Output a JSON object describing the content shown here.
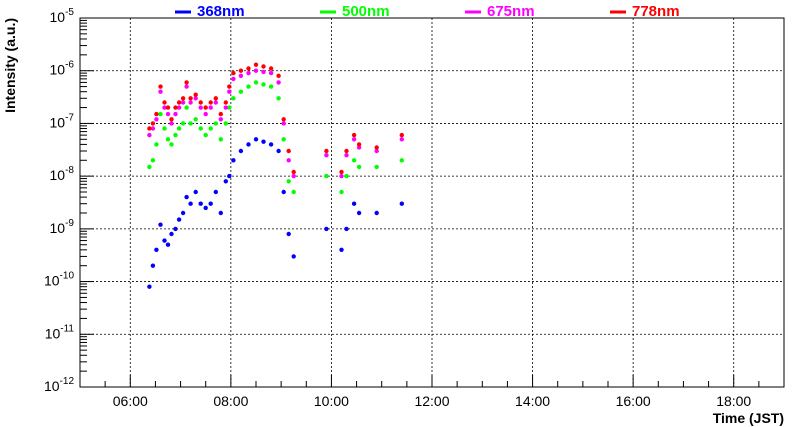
{
  "chart_data": {
    "type": "scatter",
    "title": "",
    "xlabel": "Time (JST)",
    "ylabel": "Intensity (a.u.)",
    "x_unit": "hours (JST)",
    "xlim": [
      5.0,
      19.0
    ],
    "x_ticks": [
      6,
      8,
      10,
      12,
      14,
      16,
      18
    ],
    "x_tick_labels": [
      "06:00",
      "08:00",
      "10:00",
      "12:00",
      "14:00",
      "16:00",
      "18:00"
    ],
    "y_scale": "log",
    "ylim": [
      1e-12,
      1e-05
    ],
    "y_ticks": [
      1e-12,
      1e-11,
      1e-10,
      1e-09,
      1e-08,
      1e-07,
      1e-06,
      1e-05
    ],
    "y_tick_labels": [
      {
        "base": "10",
        "exp": "-12"
      },
      {
        "base": "10",
        "exp": "-11"
      },
      {
        "base": "10",
        "exp": "-10"
      },
      {
        "base": "10",
        "exp": "-9"
      },
      {
        "base": "10",
        "exp": "-8"
      },
      {
        "base": "10",
        "exp": "-7"
      },
      {
        "base": "10",
        "exp": "-6"
      },
      {
        "base": "10",
        "exp": "-5"
      }
    ],
    "grid": true,
    "legend_position": "top",
    "series": [
      {
        "name": "368nm",
        "color": "#0000ff",
        "x": [
          6.38,
          6.45,
          6.52,
          6.6,
          6.68,
          6.75,
          6.82,
          6.9,
          6.97,
          7.05,
          7.12,
          7.2,
          7.3,
          7.4,
          7.5,
          7.6,
          7.7,
          7.8,
          7.9,
          7.97,
          8.05,
          8.2,
          8.35,
          8.5,
          8.65,
          8.8,
          8.95,
          9.05,
          9.15,
          9.25,
          9.9,
          10.2,
          10.3,
          10.45,
          10.55,
          10.9,
          11.4
        ],
        "y": [
          8e-11,
          2e-10,
          4e-10,
          1.2e-09,
          6e-10,
          5e-10,
          8e-10,
          1e-09,
          1.5e-09,
          2e-09,
          4e-09,
          3e-09,
          5e-09,
          3e-09,
          2.5e-09,
          3e-09,
          5e-09,
          2e-09,
          8e-09,
          1e-08,
          2e-08,
          3e-08,
          4e-08,
          5e-08,
          4.5e-08,
          4e-08,
          3e-08,
          5e-09,
          8e-10,
          3e-10,
          1e-09,
          4e-10,
          1e-09,
          3e-09,
          2e-09,
          2e-09,
          3e-09
        ]
      },
      {
        "name": "500nm",
        "color": "#00ff00",
        "x": [
          6.38,
          6.45,
          6.52,
          6.6,
          6.68,
          6.75,
          6.82,
          6.9,
          6.97,
          7.05,
          7.12,
          7.2,
          7.3,
          7.4,
          7.5,
          7.6,
          7.7,
          7.8,
          7.9,
          7.97,
          8.05,
          8.2,
          8.35,
          8.5,
          8.65,
          8.8,
          8.95,
          9.05,
          9.15,
          9.25,
          9.9,
          10.2,
          10.3,
          10.45,
          10.55,
          10.9,
          11.4
        ],
        "y": [
          1.5e-08,
          2e-08,
          4e-08,
          1.5e-07,
          8e-08,
          5e-08,
          4e-08,
          6e-08,
          8e-08,
          1e-07,
          2e-07,
          1e-07,
          1.2e-07,
          8e-08,
          6e-08,
          8e-08,
          1e-07,
          5e-08,
          1e-07,
          2e-07,
          3e-07,
          4e-07,
          5e-07,
          6e-07,
          5.5e-07,
          5e-07,
          3e-07,
          5e-08,
          8e-09,
          5e-09,
          1e-08,
          5e-09,
          1e-08,
          2e-08,
          1.5e-08,
          1.5e-08,
          2e-08
        ]
      },
      {
        "name": "675nm",
        "color": "#ff00ff",
        "x": [
          6.38,
          6.45,
          6.52,
          6.6,
          6.68,
          6.75,
          6.82,
          6.9,
          6.97,
          7.05,
          7.12,
          7.2,
          7.3,
          7.4,
          7.5,
          7.6,
          7.7,
          7.8,
          7.9,
          7.97,
          8.05,
          8.2,
          8.35,
          8.5,
          8.65,
          8.8,
          8.95,
          9.05,
          9.15,
          9.25,
          9.9,
          10.2,
          10.3,
          10.45,
          10.55,
          10.9,
          11.4
        ],
        "y": [
          6e-08,
          8e-08,
          1.2e-07,
          4e-07,
          2e-07,
          1.5e-07,
          1e-07,
          1.5e-07,
          2e-07,
          2.5e-07,
          5e-07,
          2.5e-07,
          3e-07,
          2e-07,
          1.5e-07,
          2e-07,
          2.5e-07,
          1.2e-07,
          2e-07,
          4e-07,
          7e-07,
          8e-07,
          9e-07,
          1e-06,
          9.5e-07,
          9e-07,
          6e-07,
          1e-07,
          2e-08,
          1e-08,
          2.5e-08,
          1e-08,
          2.5e-08,
          5e-08,
          3.5e-08,
          3e-08,
          5e-08
        ]
      },
      {
        "name": "778nm",
        "color": "#ff0000",
        "x": [
          6.38,
          6.45,
          6.52,
          6.6,
          6.68,
          6.75,
          6.82,
          6.9,
          6.97,
          7.05,
          7.12,
          7.2,
          7.3,
          7.4,
          7.5,
          7.6,
          7.7,
          7.8,
          7.9,
          7.97,
          8.05,
          8.2,
          8.35,
          8.5,
          8.65,
          8.8,
          8.95,
          9.05,
          9.15,
          9.25,
          9.9,
          10.2,
          10.3,
          10.45,
          10.55,
          10.9,
          11.4
        ],
        "y": [
          8e-08,
          1e-07,
          1.5e-07,
          5e-07,
          2.5e-07,
          2e-07,
          1.2e-07,
          2e-07,
          2.5e-07,
          3e-07,
          6e-07,
          3e-07,
          3.5e-07,
          2.5e-07,
          2e-07,
          2.5e-07,
          3e-07,
          1.5e-07,
          2.5e-07,
          5e-07,
          9e-07,
          1e-06,
          1.1e-06,
          1.3e-06,
          1.2e-06,
          1.1e-06,
          8e-07,
          1.2e-07,
          3e-08,
          1.2e-08,
          3e-08,
          1.2e-08,
          3e-08,
          6e-08,
          4e-08,
          3.5e-08,
          6e-08
        ]
      }
    ]
  }
}
